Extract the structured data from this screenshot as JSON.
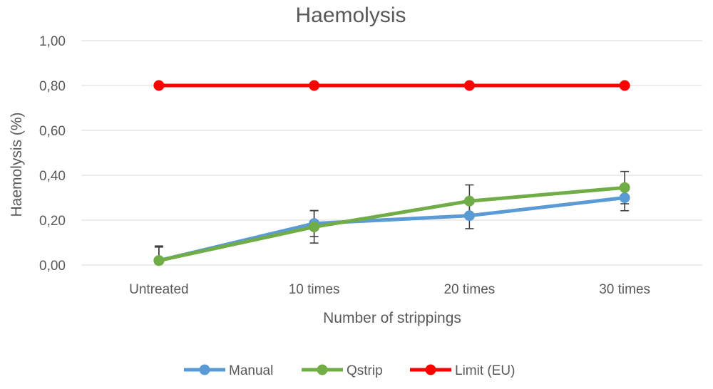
{
  "chart_data": {
    "type": "line",
    "title": "Haemolysis",
    "xlabel": "Number of strippings",
    "ylabel": "Haemolysis (%)",
    "categories": [
      "Untreated",
      "10 times",
      "20 times",
      "30 times"
    ],
    "ylim": [
      0,
      1.0
    ],
    "yticks": [
      0,
      0.2,
      0.4,
      0.6,
      0.8,
      1.0
    ],
    "ytick_labels": [
      "0,00",
      "0,20",
      "0,40",
      "0,60",
      "0,80",
      "1,00"
    ],
    "grid": true,
    "legend_position": "bottom",
    "series": [
      {
        "name": "Manual",
        "color": "#5b9bd5",
        "values": [
          0.02,
          0.185,
          0.22,
          0.3
        ],
        "error": [
          0.06,
          0.058,
          0.058,
          0.058
        ]
      },
      {
        "name": "Qstrip",
        "color": "#70ad47",
        "values": [
          0.02,
          0.17,
          0.285,
          0.345
        ],
        "error": [
          0.065,
          0.072,
          0.072,
          0.072
        ]
      },
      {
        "name": "Limit (EU)",
        "color": "#ff0000",
        "values": [
          0.8,
          0.8,
          0.8,
          0.8
        ]
      }
    ]
  }
}
